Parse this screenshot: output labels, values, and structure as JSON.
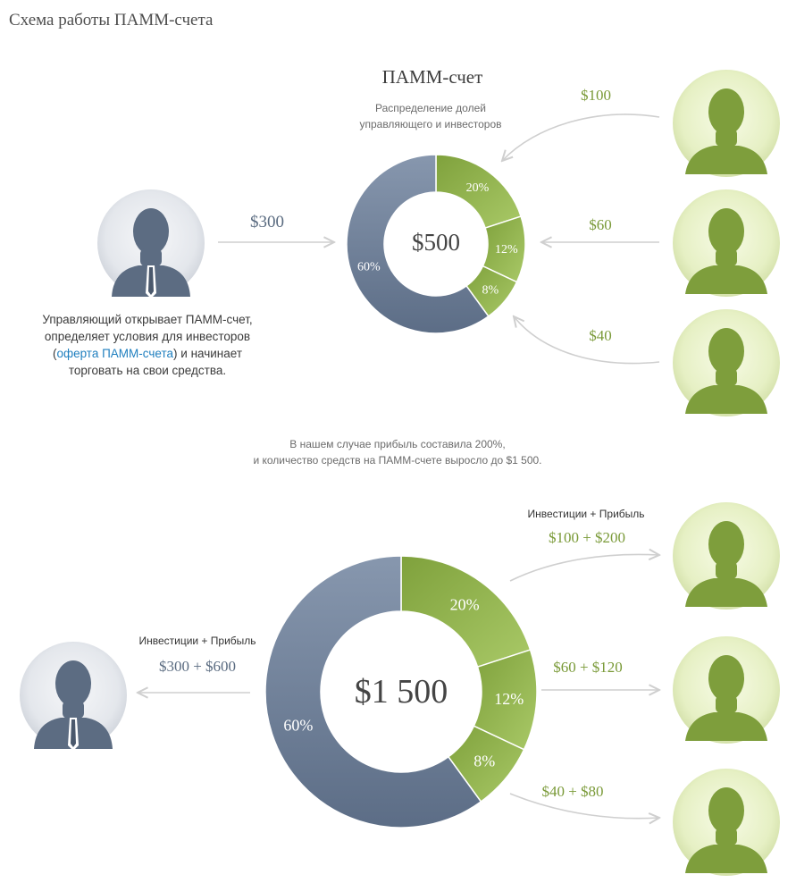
{
  "title": "Схема работы ПАММ-счета",
  "colors": {
    "green_light": "#a8c66c",
    "green_dark": "#7ea43c",
    "blue_light": "#8a9bb3",
    "blue_dark": "#5f7089",
    "green_text": "#7a9a38",
    "slate_text": "#5a6b80",
    "arrow": "#cfcfcf"
  },
  "top": {
    "account_title": "ПАММ-счет",
    "account_subtitle_1": "Распределение долей",
    "account_subtitle_2": "управляющего и инвесторов",
    "total": "$500",
    "manager_amount": "$300",
    "manager_desc_1": "Управляющий открывает ПАММ-счет,",
    "manager_desc_2": "определяет условия для инвесторов",
    "manager_desc_3_open": "(",
    "manager_desc_3_link": "оферта ПАММ-счета",
    "manager_desc_3_close": ") и начинает",
    "manager_desc_4": "торговать на свои средства.",
    "investors": [
      {
        "amount": "$100"
      },
      {
        "amount": "$60"
      },
      {
        "amount": "$40"
      }
    ]
  },
  "note_1": "В нашем случае прибыль составила 200%,",
  "note_2": "и количество средств на ПАММ-счете выросло до $1 500.",
  "bottom": {
    "total": "$1 500",
    "inv_profit_label_investors": "Инвестиции + Прибыль",
    "inv_profit_label_manager": "Инвестиции + Прибыль",
    "manager_amount": "$300 + $600",
    "investors": [
      {
        "amount": "$100 + $200"
      },
      {
        "amount": "$60 + $120"
      },
      {
        "amount": "$40 + $80"
      }
    ]
  },
  "chart_data": {
    "type": "pie",
    "variant": "donut",
    "categories": [
      "60%",
      "20%",
      "12%",
      "8%"
    ],
    "values": [
      60,
      20,
      12,
      8
    ]
  }
}
